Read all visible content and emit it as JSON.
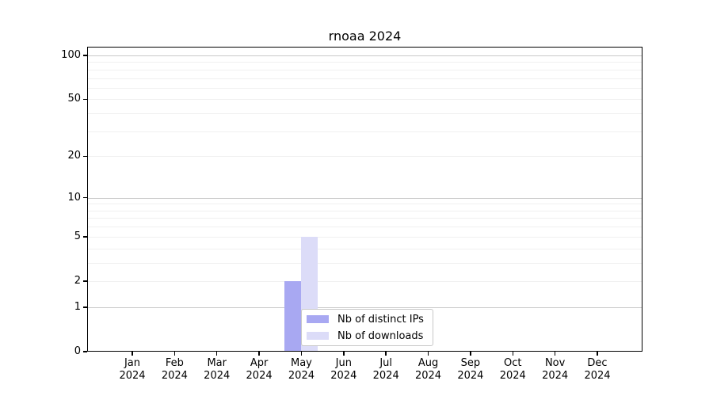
{
  "chart_data": {
    "type": "bar",
    "title": "rnoaa 2024",
    "categories": [
      "Jan",
      "Feb",
      "Mar",
      "Apr",
      "May",
      "Jun",
      "Jul",
      "Aug",
      "Sep",
      "Oct",
      "Nov",
      "Dec"
    ],
    "x_year": "2024",
    "series": [
      {
        "name": "Nb of distinct IPs",
        "color": "#a8a8f2",
        "values": [
          0,
          0,
          0,
          0,
          2,
          0,
          0,
          0,
          0,
          0,
          0,
          0
        ]
      },
      {
        "name": "Nb of downloads",
        "color": "#dcdcf8",
        "values": [
          0,
          0,
          0,
          0,
          5,
          0,
          0,
          0,
          0,
          0,
          0,
          0
        ]
      }
    ],
    "y_ticks": [
      0,
      1,
      2,
      5,
      10,
      20,
      50,
      100
    ],
    "y_scale": "log1p",
    "ylim": [
      0,
      100
    ],
    "grid": "horizontal",
    "grid_major_values": [
      1,
      10,
      100
    ],
    "grid_minor_values": [
      2,
      3,
      4,
      5,
      6,
      7,
      8,
      9,
      20,
      30,
      40,
      50,
      60,
      70,
      80,
      90
    ],
    "legend_position": "inside-lower-center",
    "frame_color": "#000000",
    "grid_major_color": "#c9c9c9",
    "grid_minor_color": "#f0f0f0"
  }
}
